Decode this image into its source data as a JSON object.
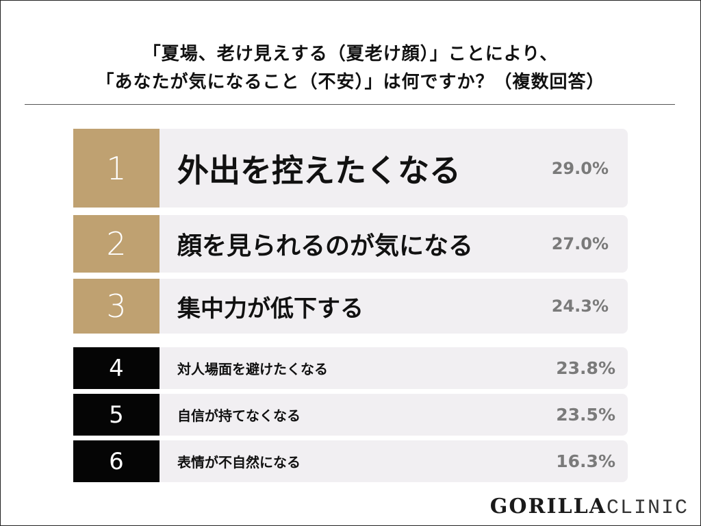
{
  "header": {
    "title_line1": "「夏場、老け見えする（夏老け顔）」ことにより、",
    "title_line2": "「あなたが気になること（不安）」は何ですか？（複数回答）"
  },
  "colors": {
    "top3": "#bfa171",
    "others": "#050505",
    "row_bg": "#f1eff2",
    "pct_text": "#7a7a7a"
  },
  "rows": [
    {
      "rank": "1",
      "label": "外出を控えたくなる",
      "pct": "29.0%"
    },
    {
      "rank": "2",
      "label": "顔を見られるのが気になる",
      "pct": "27.0%"
    },
    {
      "rank": "3",
      "label": "集中力が低下する",
      "pct": "24.3%"
    },
    {
      "rank": "4",
      "label": "対人場面を避けたくなる",
      "pct": "23.8%"
    },
    {
      "rank": "5",
      "label": "自信が持てなくなる",
      "pct": "23.5%"
    },
    {
      "rank": "6",
      "label": "表情が不自然になる",
      "pct": "16.3%"
    }
  ],
  "logo": {
    "bold": "GORILLA",
    "light": "CLINIC"
  },
  "chart_data": {
    "type": "table",
    "title": "「夏場、老け見えする（夏老け顔）」ことにより、「あなたが気になること（不安）」は何ですか？（複数回答）",
    "categories": [
      "外出を控えたくなる",
      "顔を見られるのが気になる",
      "集中力が低下する",
      "対人場面を避けたくなる",
      "自信が持てなくなる",
      "表情が不自然になる"
    ],
    "values": [
      29.0,
      27.0,
      24.3,
      23.8,
      23.5,
      16.3
    ],
    "ranks": [
      1,
      2,
      3,
      4,
      5,
      6
    ],
    "unit": "%",
    "xlabel": "",
    "ylabel": ""
  }
}
